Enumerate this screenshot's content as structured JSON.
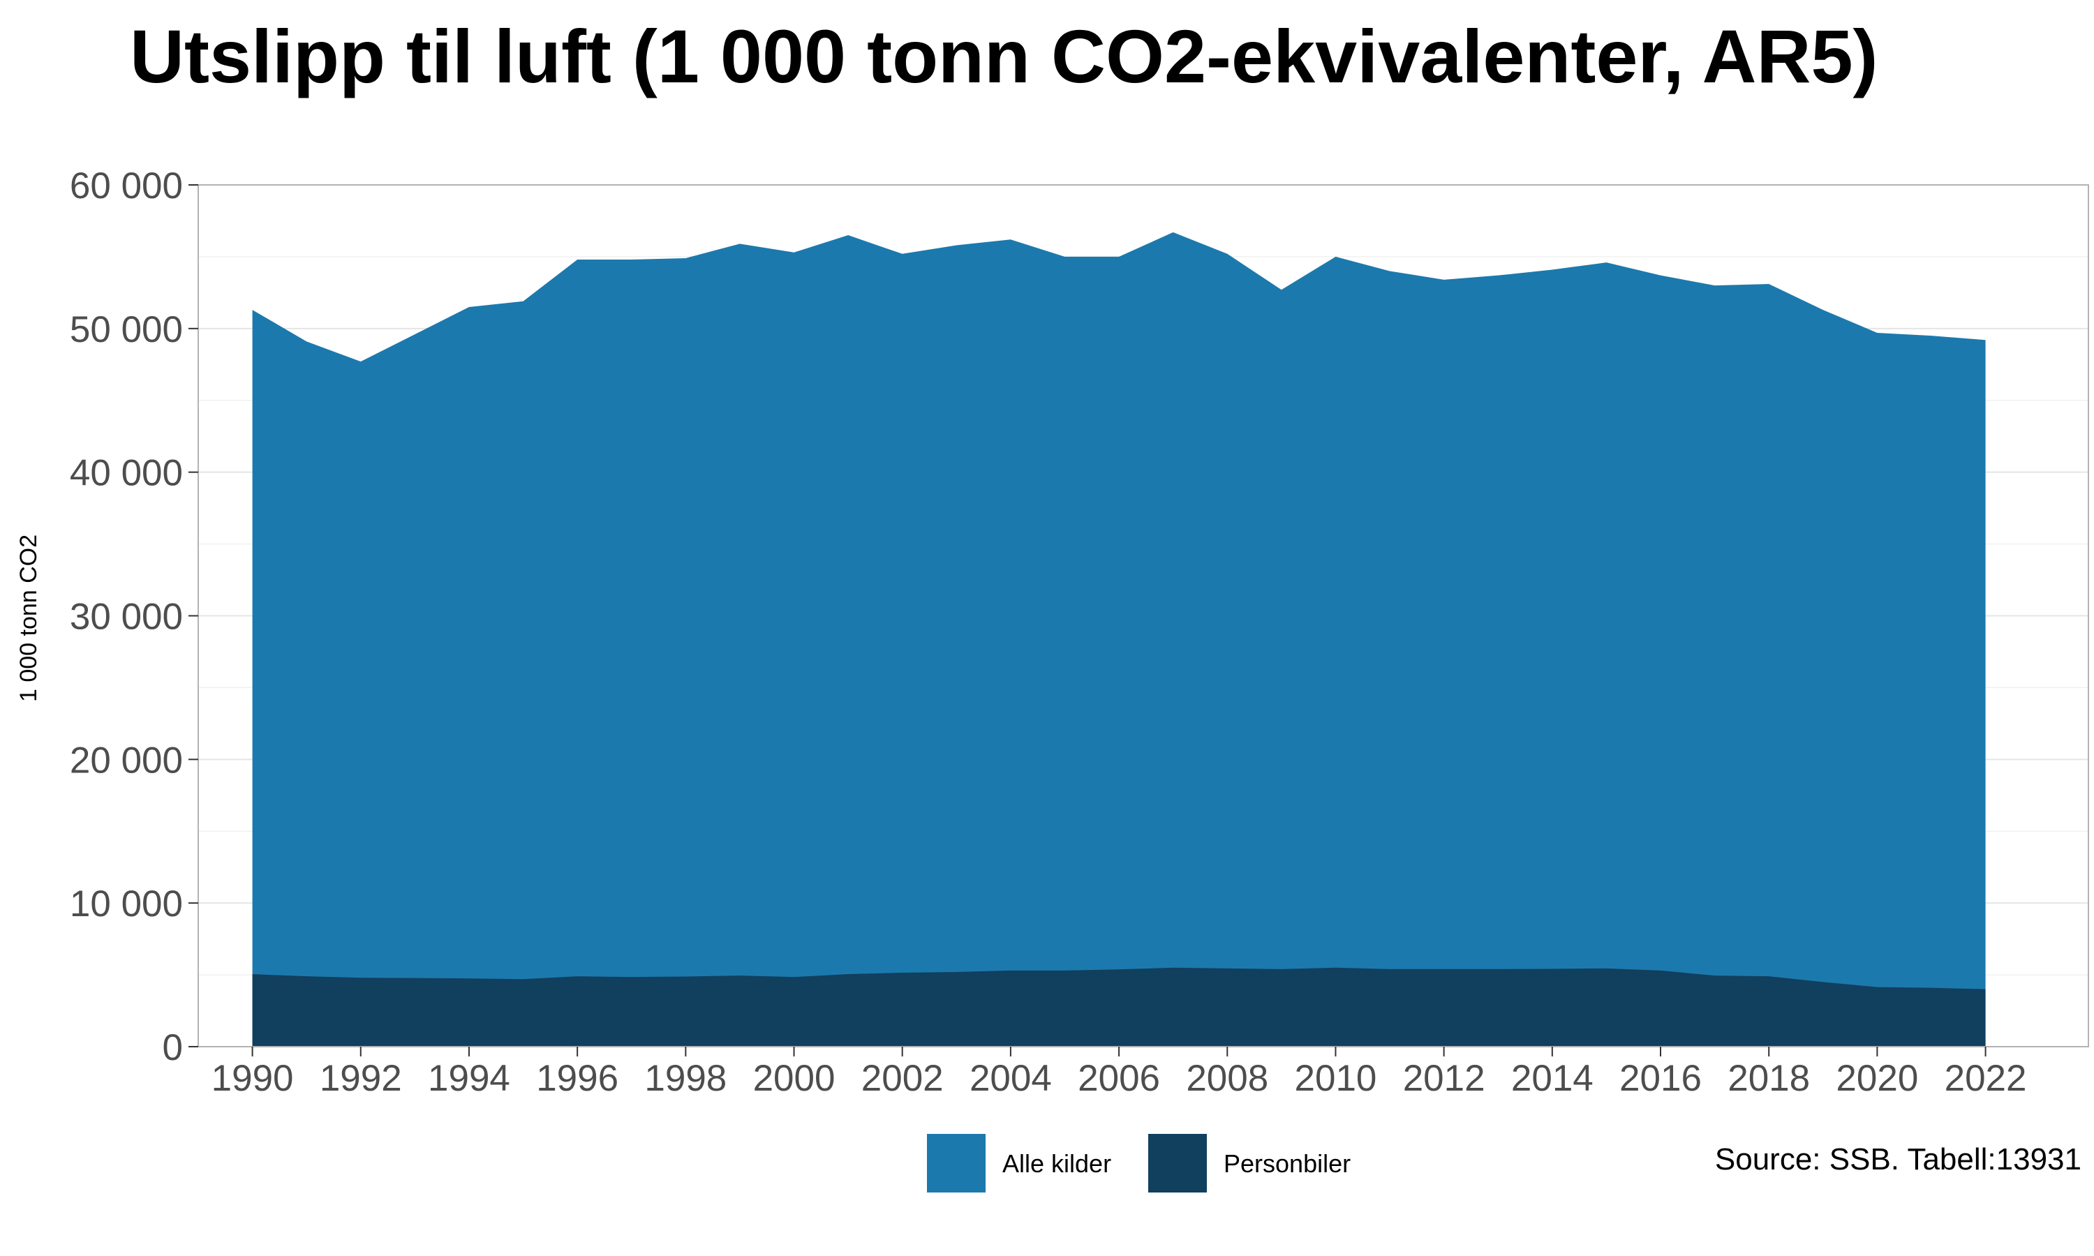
{
  "chart_data": {
    "type": "area",
    "title": "Utslipp til luft (1 000 tonn CO2-ekvivalenter, AR5)",
    "ylabel": "1 000 tonn CO2",
    "xlabel": "",
    "ylim": [
      0,
      60000
    ],
    "yticks": [
      0,
      10000,
      20000,
      30000,
      40000,
      50000,
      60000
    ],
    "ytick_labels": [
      "0",
      "10 000",
      "20 000",
      "30 000",
      "40 000",
      "50 000",
      "60 000"
    ],
    "xticks": [
      1990,
      1992,
      1994,
      1996,
      1998,
      2000,
      2002,
      2004,
      2006,
      2008,
      2010,
      2012,
      2014,
      2016,
      2018,
      2020,
      2022
    ],
    "x": [
      1990,
      1991,
      1992,
      1993,
      1994,
      1995,
      1996,
      1997,
      1998,
      1999,
      2000,
      2001,
      2002,
      2003,
      2004,
      2005,
      2006,
      2007,
      2008,
      2009,
      2010,
      2011,
      2012,
      2013,
      2014,
      2015,
      2016,
      2017,
      2018,
      2019,
      2020,
      2021,
      2022
    ],
    "series": [
      {
        "name": "Alle kilder",
        "color": "#1c79ad",
        "values": [
          51300,
          49100,
          47700,
          49600,
          51500,
          51900,
          54800,
          54800,
          54900,
          55900,
          55300,
          56500,
          55200,
          55800,
          56200,
          55000,
          55000,
          56700,
          55200,
          52700,
          55000,
          54000,
          53400,
          53700,
          54100,
          54600,
          53700,
          53000,
          53100,
          51300,
          49700,
          49500,
          49200
        ]
      },
      {
        "name": "Personbiler",
        "color": "#113f5e",
        "values": [
          5050,
          4900,
          4800,
          4780,
          4750,
          4700,
          4900,
          4850,
          4880,
          4950,
          4850,
          5050,
          5150,
          5200,
          5300,
          5300,
          5380,
          5500,
          5450,
          5400,
          5500,
          5400,
          5400,
          5400,
          5420,
          5450,
          5300,
          4950,
          4900,
          4500,
          4150,
          4100,
          4000
        ]
      }
    ],
    "grid": true,
    "legend_position": "bottom",
    "source": "Source: SSB. Tabell:13931"
  }
}
